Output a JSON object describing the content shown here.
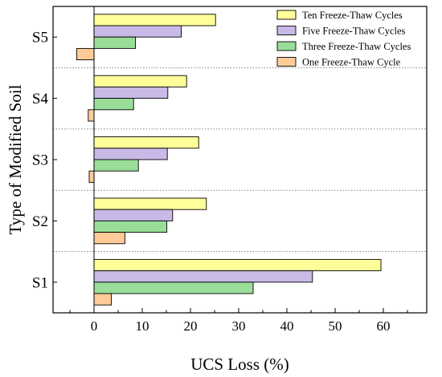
{
  "chart_data": {
    "type": "bar",
    "orientation": "horizontal",
    "title": "",
    "xlabel": "UCS Loss (%)",
    "ylabel": "Type of Modified Soil",
    "xlim": [
      -8.5,
      69
    ],
    "xticks": [
      0,
      10,
      20,
      30,
      40,
      50,
      60
    ],
    "categories": [
      "S1",
      "S2",
      "S3",
      "S4",
      "S5"
    ],
    "grid": false,
    "category_separators": "dotted",
    "legend_position": "top-right",
    "series": [
      {
        "name": "Ten Freeze-Thaw Cycles",
        "color": "#ffff99",
        "values": [
          59.5,
          23.3,
          21.7,
          19.2,
          25.2
        ]
      },
      {
        "name": "Five Freeze-Thaw Cycles",
        "color": "#c8b9e6",
        "values": [
          45.3,
          16.3,
          15.2,
          15.3,
          18.1
        ]
      },
      {
        "name": "Three Freeze-Thaw Cycles",
        "color": "#99dd99",
        "values": [
          33.0,
          15.1,
          9.2,
          8.2,
          8.6
        ]
      },
      {
        "name": "One Freeze-Thaw Cycle",
        "color": "#ffcc99",
        "values": [
          3.6,
          6.4,
          -1.0,
          -1.2,
          -3.6
        ]
      }
    ]
  }
}
